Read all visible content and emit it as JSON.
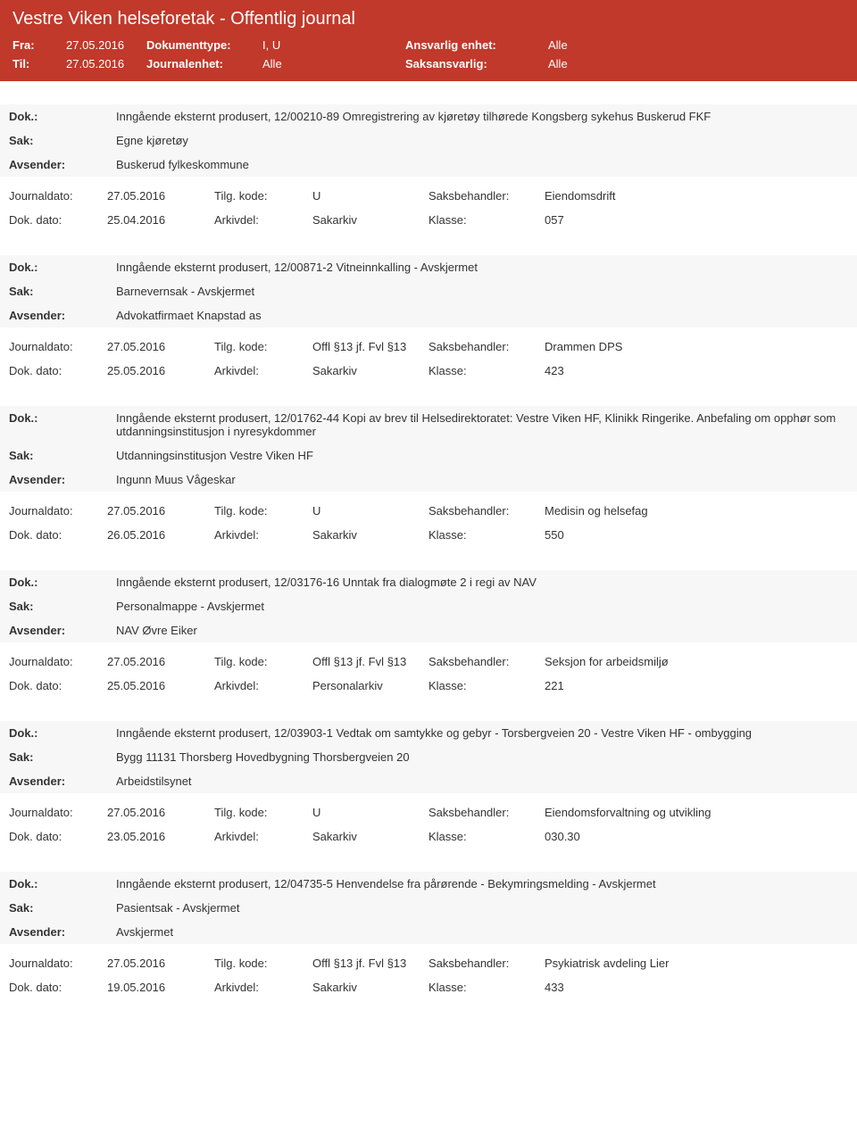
{
  "header": {
    "title": "Vestre Viken helseforetak - Offentlig journal",
    "fra_label": "Fra:",
    "fra_value": "27.05.2016",
    "til_label": "Til:",
    "til_value": "27.05.2016",
    "dokumenttype_label": "Dokumenttype:",
    "dokumenttype_value": "I, U",
    "journalenhet_label": "Journalenhet:",
    "journalenhet_value": "Alle",
    "ansvarlig_label": "Ansvarlig enhet:",
    "ansvarlig_value": "Alle",
    "saksansvarlig_label": "Saksansvarlig:",
    "saksansvarlig_value": "Alle"
  },
  "labels": {
    "dok": "Dok.:",
    "sak": "Sak:",
    "avsender": "Avsender:",
    "journaldato": "Journaldato:",
    "dokdato": "Dok. dato:",
    "tilgkode": "Tilg. kode:",
    "arkivdel": "Arkivdel:",
    "saksbehandler": "Saksbehandler:",
    "klasse": "Klasse:"
  },
  "entries": [
    {
      "dok": "Inngående eksternt produsert, 12/00210-89 Omregistrering av kjøretøy tilhørede Kongsberg sykehus Buskerud FKF",
      "sak": "Egne kjøretøy",
      "avsender": "Buskerud fylkeskommune",
      "journaldato": "27.05.2016",
      "tilgkode": "U",
      "saksbehandler": "Eiendomsdrift",
      "dokdato": "25.04.2016",
      "arkivdel": "Sakarkiv",
      "klasse": "057"
    },
    {
      "dok": "Inngående eksternt produsert, 12/00871-2 Vitneinnkalling - Avskjermet",
      "sak": "Barnevernsak - Avskjermet",
      "avsender": "Advokatfirmaet Knapstad as",
      "journaldato": "27.05.2016",
      "tilgkode": "Offl §13 jf. Fvl §13",
      "saksbehandler": "Drammen DPS",
      "dokdato": "25.05.2016",
      "arkivdel": "Sakarkiv",
      "klasse": "423"
    },
    {
      "dok": "Inngående eksternt produsert, 12/01762-44 Kopi av brev til Helsedirektoratet: Vestre Viken HF, Klinikk Ringerike. Anbefaling om opphør som utdanningsinstitusjon i nyresykdommer",
      "sak": "Utdanningsinstitusjon Vestre Viken HF",
      "avsender": "Ingunn Muus Vågeskar",
      "journaldato": "27.05.2016",
      "tilgkode": "U",
      "saksbehandler": "Medisin og helsefag",
      "dokdato": "26.05.2016",
      "arkivdel": "Sakarkiv",
      "klasse": "550"
    },
    {
      "dok": "Inngående eksternt produsert, 12/03176-16 Unntak fra dialogmøte 2 i regi av NAV",
      "sak": "Personalmappe - Avskjermet",
      "avsender": "NAV Øvre Eiker",
      "journaldato": "27.05.2016",
      "tilgkode": "Offl §13 jf. Fvl §13",
      "saksbehandler": "Seksjon for arbeidsmiljø",
      "dokdato": "25.05.2016",
      "arkivdel": "Personalarkiv",
      "klasse": "221"
    },
    {
      "dok": "Inngående eksternt produsert, 12/03903-1 Vedtak om samtykke og gebyr - Torsbergveien 20 - Vestre Viken HF - ombygging",
      "sak": "Bygg 11131 Thorsberg Hovedbygning Thorsbergveien 20",
      "avsender": "Arbeidstilsynet",
      "journaldato": "27.05.2016",
      "tilgkode": "U",
      "saksbehandler": "Eiendomsforvaltning og utvikling",
      "dokdato": "23.05.2016",
      "arkivdel": "Sakarkiv",
      "klasse": "030.30"
    },
    {
      "dok": "Inngående eksternt produsert, 12/04735-5 Henvendelse fra pårørende - Bekymringsmelding - Avskjermet",
      "sak": "Pasientsak - Avskjermet",
      "avsender": "Avskjermet",
      "journaldato": "27.05.2016",
      "tilgkode": "Offl §13 jf. Fvl §13",
      "saksbehandler": "Psykiatrisk avdeling Lier",
      "dokdato": "19.05.2016",
      "arkivdel": "Sakarkiv",
      "klasse": "433"
    }
  ]
}
